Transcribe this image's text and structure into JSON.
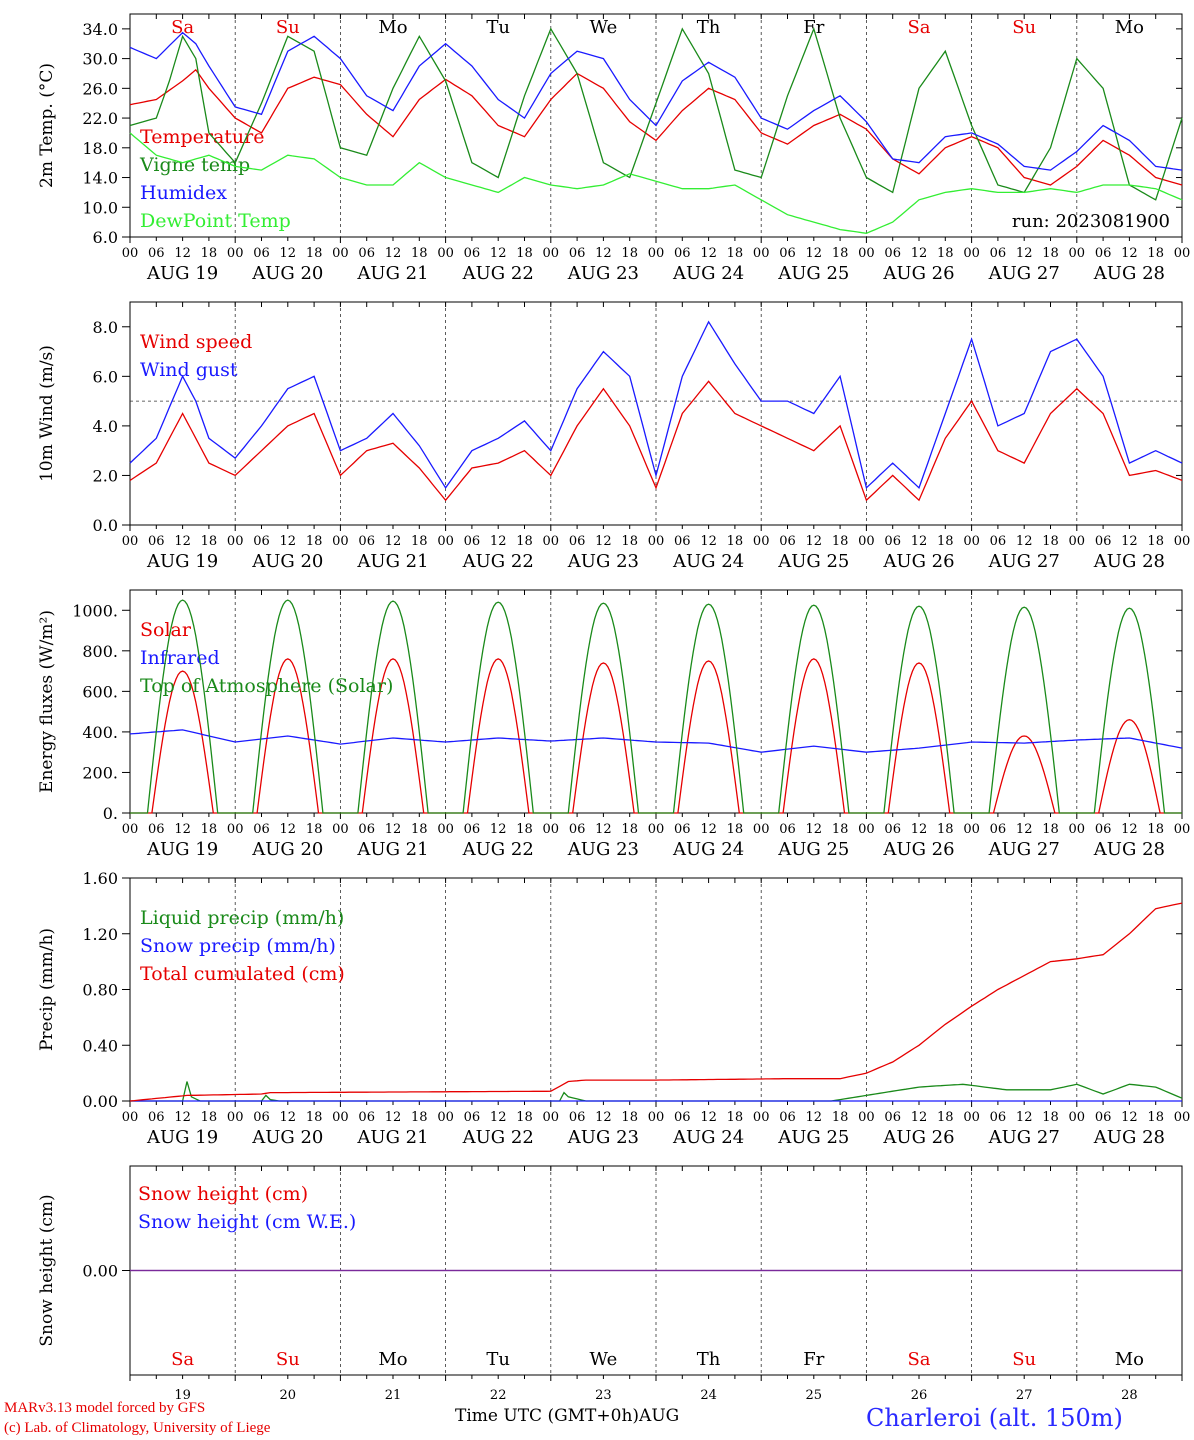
{
  "colors": {
    "red": "#e60000",
    "green": "#1a8a1a",
    "blue": "#1a1aff",
    "lime": "#33ee33",
    "purple": "#7a2a9a",
    "axis": "#000000"
  },
  "days": [
    "Sa",
    "Su",
    "Mo",
    "Tu",
    "We",
    "Th",
    "Fr",
    "Sa",
    "Su",
    "Mo"
  ],
  "weekend": [
    true,
    true,
    false,
    false,
    false,
    false,
    false,
    true,
    true,
    false
  ],
  "dates": [
    "AUG 19",
    "AUG 20",
    "AUG 21",
    "AUG 22",
    "AUG 23",
    "AUG 24",
    "AUG 25",
    "AUG 26",
    "AUG 27",
    "AUG 28"
  ],
  "hour_ticks": [
    "00",
    "06",
    "12",
    "18"
  ],
  "last_tick": "00",
  "bottom_dates": [
    "19",
    "20",
    "21",
    "22",
    "23",
    "24",
    "25",
    "26",
    "27",
    "28"
  ],
  "footer": {
    "model": "MARv3.13 model forced by GFS",
    "copyright": "(c) Lab. of Climatology, University of Liege",
    "time_label": "Time UTC (GMT+0h)AUG",
    "station": "Charleroi (alt. 150m)"
  },
  "chart_data": [
    {
      "type": "line",
      "ylabel": "2m Temp. (°C)",
      "ylim": [
        6,
        36
      ],
      "yticks": [
        "6.0",
        "10.0",
        "14.0",
        "18.0",
        "22.0",
        "26.0",
        "30.0",
        "34.0"
      ],
      "run": "run: 2023081900",
      "x_unit": "hours since AUG 19 00 UTC",
      "series": [
        {
          "name": "Temperature",
          "color": "red",
          "x": [
            0,
            6,
            12,
            15,
            18,
            24,
            30,
            36,
            42,
            48,
            54,
            60,
            66,
            72,
            78,
            84,
            90,
            96,
            102,
            108,
            114,
            120,
            126,
            132,
            138,
            144,
            150,
            156,
            162,
            168,
            174,
            180,
            186,
            192,
            198,
            204,
            210,
            216,
            222,
            228,
            234,
            240
          ],
          "values": [
            23.8,
            24.5,
            27,
            28.5,
            26,
            22,
            20,
            26,
            27.5,
            26.5,
            22.5,
            19.5,
            24.5,
            27.2,
            25,
            21,
            19.5,
            24.5,
            28,
            26,
            21.5,
            19,
            23,
            26,
            24.5,
            20,
            18.5,
            21,
            22.5,
            20.5,
            16.5,
            14.5,
            18,
            19.5,
            18,
            14,
            13,
            15.5,
            19,
            17,
            14,
            13
          ]
        },
        {
          "name": "Vigne temp",
          "color": "green",
          "x": [
            0,
            6,
            9,
            12,
            15,
            18,
            24,
            30,
            36,
            42,
            48,
            54,
            60,
            66,
            72,
            78,
            84,
            90,
            96,
            102,
            108,
            114,
            120,
            126,
            132,
            138,
            144,
            150,
            156,
            162,
            168,
            174,
            180,
            186,
            192,
            198,
            204,
            210,
            216,
            222,
            228,
            234,
            240
          ],
          "values": [
            21,
            22,
            27,
            33,
            30,
            20,
            16,
            24,
            33,
            31,
            18,
            17,
            26,
            33,
            27,
            16,
            14,
            25,
            34,
            28,
            16,
            14,
            24,
            34,
            28,
            15,
            14,
            25,
            34,
            22,
            14,
            12,
            26,
            31,
            21,
            13,
            12,
            18,
            30,
            26,
            13,
            11,
            22
          ]
        },
        {
          "name": "Humidex",
          "color": "blue",
          "x": [
            0,
            6,
            12,
            15,
            18,
            24,
            30,
            36,
            42,
            48,
            54,
            60,
            66,
            72,
            78,
            84,
            90,
            96,
            102,
            108,
            114,
            120,
            126,
            132,
            138,
            144,
            150,
            156,
            162,
            168,
            174,
            180,
            186,
            192,
            198,
            204,
            210,
            216,
            222,
            228,
            234,
            240
          ],
          "values": [
            31.5,
            30,
            33.5,
            32,
            29,
            23.5,
            22.5,
            31,
            33,
            30,
            25,
            23,
            29,
            32,
            29,
            24.5,
            22,
            28,
            31,
            30,
            24.5,
            21,
            27,
            29.5,
            27.5,
            22,
            20.5,
            23,
            25,
            21.5,
            16.5,
            16,
            19.5,
            20,
            18.5,
            15.5,
            15,
            17.5,
            21,
            19,
            15.5,
            15
          ]
        },
        {
          "name": "DewPoint Temp",
          "color": "lime",
          "x": [
            0,
            6,
            12,
            18,
            24,
            30,
            36,
            42,
            48,
            54,
            60,
            66,
            72,
            78,
            84,
            90,
            96,
            102,
            108,
            114,
            120,
            126,
            132,
            138,
            144,
            150,
            156,
            162,
            168,
            174,
            180,
            186,
            192,
            198,
            204,
            210,
            216,
            222,
            228,
            234,
            240
          ],
          "values": [
            20,
            17,
            16,
            17,
            15.5,
            15,
            17,
            16.5,
            14,
            13,
            13,
            16,
            14,
            13,
            12,
            14,
            13,
            12.5,
            13,
            14.5,
            13.5,
            12.5,
            12.5,
            13,
            11,
            9,
            8,
            7,
            6.5,
            8,
            11,
            12,
            12.5,
            12,
            12,
            12.5,
            12,
            13,
            13,
            12.5,
            11
          ]
        }
      ]
    },
    {
      "type": "line",
      "ylabel": "10m Wind (m/s)",
      "ylim": [
        0,
        9
      ],
      "yticks": [
        "0.0",
        "2.0",
        "4.0",
        "6.0",
        "8.0"
      ],
      "reference_line": 5,
      "x_unit": "hours since AUG 19 00 UTC",
      "series": [
        {
          "name": "Wind speed",
          "color": "red",
          "x": [
            0,
            6,
            12,
            15,
            18,
            24,
            30,
            36,
            42,
            48,
            54,
            60,
            66,
            72,
            78,
            84,
            90,
            96,
            102,
            108,
            114,
            120,
            126,
            132,
            138,
            144,
            150,
            156,
            162,
            168,
            174,
            180,
            186,
            192,
            198,
            204,
            210,
            216,
            222,
            228,
            234,
            240
          ],
          "values": [
            1.8,
            2.5,
            4.5,
            3.5,
            2.5,
            2,
            3,
            4,
            4.5,
            2,
            3,
            3.3,
            2.3,
            1,
            2.3,
            2.5,
            3,
            2,
            4,
            5.5,
            4,
            1.5,
            4.5,
            5.8,
            4.5,
            4,
            3.5,
            3,
            4,
            1,
            2,
            1,
            3.5,
            5,
            3,
            2.5,
            4.5,
            5.5,
            4.5,
            2,
            2.2,
            1.8
          ]
        },
        {
          "name": "Wind gust",
          "color": "blue",
          "x": [
            0,
            6,
            12,
            15,
            18,
            24,
            30,
            36,
            42,
            48,
            54,
            60,
            66,
            72,
            78,
            84,
            90,
            96,
            102,
            108,
            114,
            120,
            126,
            132,
            138,
            144,
            150,
            156,
            162,
            168,
            174,
            180,
            186,
            192,
            198,
            204,
            210,
            216,
            222,
            228,
            234,
            240
          ],
          "values": [
            2.5,
            3.5,
            6,
            5,
            3.5,
            2.7,
            4,
            5.5,
            6,
            3,
            3.5,
            4.5,
            3.2,
            1.5,
            3,
            3.5,
            4.2,
            3,
            5.5,
            7,
            6,
            2,
            6,
            8.2,
            6.5,
            5,
            5,
            4.5,
            6,
            1.5,
            2.5,
            1.5,
            4.5,
            7.5,
            4,
            4.5,
            7,
            7.5,
            6,
            2.5,
            3,
            2.5
          ]
        }
      ]
    },
    {
      "type": "line",
      "ylabel": "Energy fluxes (W/m²)",
      "ylim": [
        0,
        1100
      ],
      "yticks": [
        "0.",
        "200.",
        "400.",
        "600.",
        "800.",
        "1000."
      ],
      "x_unit": "hours since AUG 19 00 UTC",
      "series": [
        {
          "name": "Solar",
          "color": "red",
          "peaks": [
            700,
            760,
            760,
            760,
            740,
            750,
            760,
            740,
            380,
            460
          ]
        },
        {
          "name": "Infrared",
          "color": "blue",
          "x": [
            0,
            12,
            24,
            36,
            48,
            60,
            72,
            84,
            96,
            108,
            120,
            132,
            144,
            156,
            168,
            180,
            192,
            204,
            216,
            228,
            240
          ],
          "values": [
            390,
            410,
            350,
            380,
            340,
            370,
            350,
            370,
            355,
            370,
            350,
            345,
            300,
            330,
            300,
            320,
            350,
            345,
            360,
            370,
            320
          ]
        },
        {
          "name": "Top of Atmosphere (Solar)",
          "color": "green",
          "peaks": [
            1050,
            1050,
            1045,
            1040,
            1035,
            1030,
            1025,
            1020,
            1015,
            1010
          ]
        }
      ]
    },
    {
      "type": "line",
      "ylabel": "Precip (mm/h)",
      "ylim": [
        0,
        1.6
      ],
      "yticks": [
        "0.00",
        "0.40",
        "0.80",
        "1.20",
        "1.60"
      ],
      "x_unit": "hours since AUG 19 00 UTC",
      "series": [
        {
          "name": "Liquid precip (mm/h)",
          "color": "green",
          "x": [
            0,
            12,
            13,
            14,
            16,
            30,
            31,
            32,
            34,
            98,
            99,
            100,
            104,
            160,
            170,
            180,
            190,
            200,
            210,
            216,
            222,
            228,
            234,
            240
          ],
          "values": [
            0,
            0,
            0.14,
            0.03,
            0,
            0,
            0.04,
            0.01,
            0,
            0,
            0.06,
            0.03,
            0,
            0,
            0.05,
            0.1,
            0.12,
            0.08,
            0.08,
            0.12,
            0.05,
            0.12,
            0.1,
            0.02
          ]
        },
        {
          "name": "Snow precip (mm/h)",
          "color": "blue",
          "x": [
            0,
            240
          ],
          "values": [
            0,
            0
          ]
        },
        {
          "name": "Total cumulated (cm)",
          "color": "red",
          "x": [
            0,
            13,
            30,
            32,
            96,
            100,
            104,
            120,
            150,
            162,
            168,
            174,
            180,
            186,
            192,
            198,
            204,
            210,
            216,
            222,
            228,
            234,
            240
          ],
          "values": [
            0,
            0.04,
            0.05,
            0.06,
            0.07,
            0.14,
            0.15,
            0.15,
            0.16,
            0.16,
            0.2,
            0.28,
            0.4,
            0.55,
            0.68,
            0.8,
            0.9,
            1.0,
            1.02,
            1.05,
            1.2,
            1.38,
            1.42
          ]
        }
      ]
    },
    {
      "type": "line",
      "ylabel": "Snow height (cm)",
      "ylim": [
        -1,
        1
      ],
      "yticks": [
        "0.00"
      ],
      "x_unit": "hours since AUG 19 00 UTC",
      "series": [
        {
          "name": "Snow height (cm)",
          "color": "red",
          "x": [
            0,
            240
          ],
          "values": [
            0,
            0
          ]
        },
        {
          "name": "Snow height (cm W.E.)",
          "color": "blue",
          "x": [
            0,
            240
          ],
          "values": [
            0,
            0
          ]
        }
      ]
    }
  ]
}
